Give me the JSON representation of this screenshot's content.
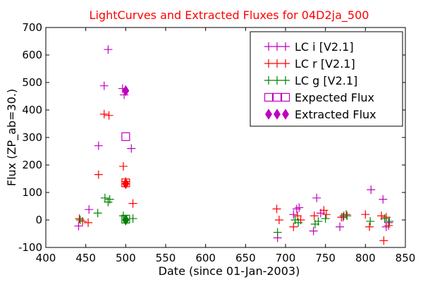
{
  "chart_data": {
    "type": "scatter",
    "title": "LightCurves and Extracted Fluxes for 04D2ja_500",
    "xlabel": "Date (since 01-Jan-2003)",
    "ylabel": "Flux (ZP_ab=30.)",
    "xlim": [
      400,
      850
    ],
    "ylim": [
      -100,
      700
    ],
    "xticks": [
      "400",
      "450",
      "500",
      "550",
      "600",
      "650",
      "700",
      "750",
      "800",
      "850"
    ],
    "yticks": [
      "-100",
      "0",
      "100",
      "200",
      "300",
      "400",
      "500",
      "600",
      "700"
    ],
    "grid": false,
    "legend_placement": "top-right",
    "colors": {
      "i": "#bf00bf",
      "r": "#ff0000",
      "g": "#008000",
      "title": "#ff0000"
    },
    "series": [
      {
        "name": "LC i [V2.1]",
        "key": "i",
        "marker": "plus",
        "points": [
          [
            441,
            -22
          ],
          [
            454,
            38
          ],
          [
            466,
            270
          ],
          [
            473,
            488
          ],
          [
            478,
            620
          ],
          [
            496,
            478
          ],
          [
            498,
            455
          ],
          [
            507,
            260
          ],
          [
            690,
            -65
          ],
          [
            710,
            20
          ],
          [
            714,
            40
          ],
          [
            717,
            45
          ],
          [
            735,
            -40
          ],
          [
            739,
            80
          ],
          [
            744,
            25
          ],
          [
            768,
            -25
          ],
          [
            772,
            10
          ],
          [
            807,
            110
          ],
          [
            822,
            75
          ],
          [
            826,
            -25
          ],
          [
            829,
            -10
          ]
        ]
      },
      {
        "name": "LC r [V2.1]",
        "key": "r",
        "marker": "plus",
        "points": [
          [
            442,
            5
          ],
          [
            446,
            -5
          ],
          [
            453,
            -10
          ],
          [
            466,
            165
          ],
          [
            473,
            385
          ],
          [
            479,
            380
          ],
          [
            497,
            195
          ],
          [
            500,
            140
          ],
          [
            509,
            60
          ],
          [
            689,
            40
          ],
          [
            692,
            0
          ],
          [
            710,
            -25
          ],
          [
            715,
            15
          ],
          [
            719,
            0
          ],
          [
            736,
            15
          ],
          [
            748,
            35
          ],
          [
            751,
            20
          ],
          [
            770,
            10
          ],
          [
            776,
            20
          ],
          [
            800,
            20
          ],
          [
            805,
            -25
          ],
          [
            820,
            15
          ],
          [
            823,
            -75
          ],
          [
            826,
            10
          ],
          [
            829,
            -20
          ]
        ]
      },
      {
        "name": "LC g [V2.1]",
        "key": "g",
        "marker": "plus",
        "points": [
          [
            443,
            0
          ],
          [
            465,
            25
          ],
          [
            474,
            80
          ],
          [
            478,
            65
          ],
          [
            480,
            75
          ],
          [
            497,
            15
          ],
          [
            509,
            5
          ],
          [
            690,
            -45
          ],
          [
            712,
            0
          ],
          [
            716,
            -10
          ],
          [
            737,
            -15
          ],
          [
            741,
            -5
          ],
          [
            750,
            5
          ],
          [
            773,
            15
          ],
          [
            777,
            15
          ],
          [
            806,
            -5
          ],
          [
            824,
            5
          ],
          [
            830,
            -5
          ]
        ]
      }
    ],
    "expected_flux": {
      "name": "Expected Flux",
      "marker": "square",
      "color": "#bf00bf",
      "points": [
        {
          "band": "i",
          "x": 500,
          "y": 303,
          "color": "#bf00bf"
        },
        {
          "band": "r",
          "x": 500,
          "y": 135,
          "color": "#ff0000"
        },
        {
          "band": "g",
          "x": 500,
          "y": 3,
          "color": "#008000"
        }
      ]
    },
    "extracted_flux": {
      "name": "Extracted Flux",
      "marker": "diamond",
      "color": "#bf00bf",
      "points": [
        {
          "band": "i",
          "x": 500,
          "y": 470,
          "color": "#bf00bf"
        },
        {
          "band": "r",
          "x": 500,
          "y": 132,
          "color": "#ff0000"
        },
        {
          "band": "g",
          "x": 500,
          "y": 0,
          "color": "#008000"
        }
      ]
    }
  }
}
